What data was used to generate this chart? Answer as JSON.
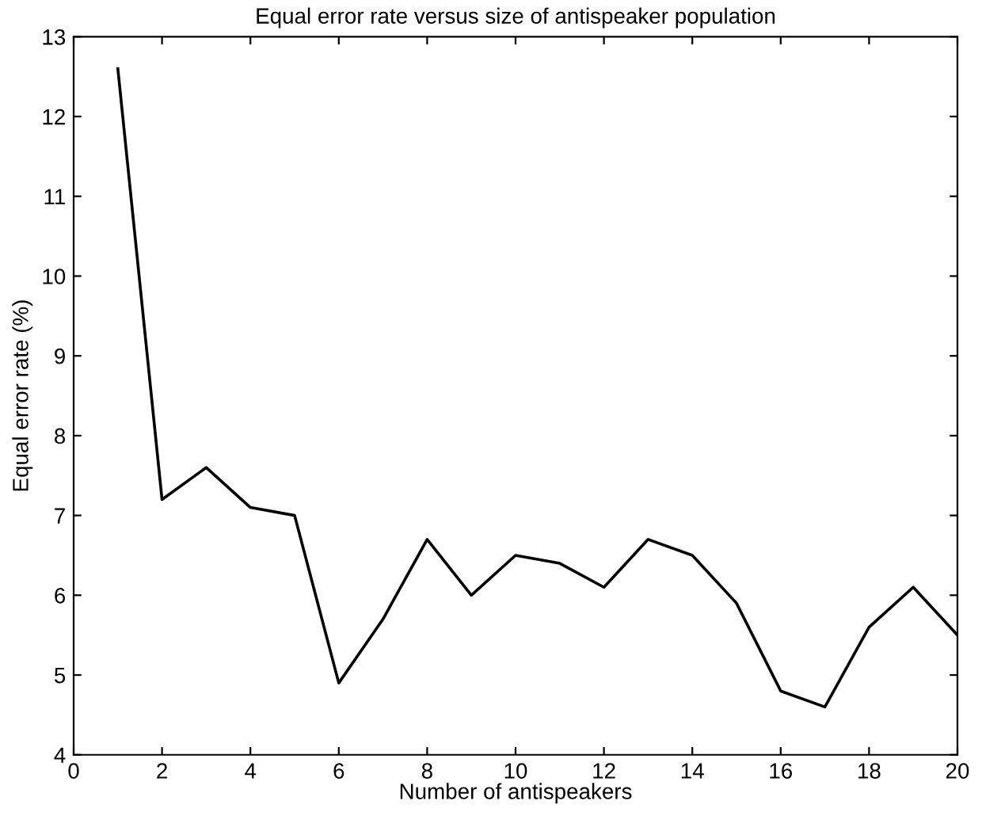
{
  "chart_data": {
    "type": "line",
    "title": "Equal error rate versus size of antispeaker population",
    "xlabel": "Number of antispeakers",
    "ylabel": "Equal error rate (%)",
    "x": [
      1,
      2,
      3,
      4,
      5,
      6,
      7,
      8,
      9,
      10,
      11,
      12,
      13,
      14,
      15,
      16,
      17,
      18,
      19,
      20
    ],
    "series": [
      {
        "color": "#000000",
        "values": [
          12.6,
          7.2,
          7.6,
          7.1,
          7.0,
          4.9,
          5.7,
          6.7,
          6.0,
          6.5,
          6.4,
          6.1,
          6.7,
          6.5,
          5.9,
          4.8,
          4.6,
          5.6,
          6.1,
          5.5
        ]
      }
    ],
    "xlim": [
      0,
      20
    ],
    "ylim": [
      4,
      13
    ],
    "xticks": [
      0,
      2,
      4,
      6,
      8,
      10,
      12,
      14,
      16,
      18,
      20
    ],
    "yticks": [
      4,
      5,
      6,
      7,
      8,
      9,
      10,
      11,
      12,
      13
    ],
    "grid": false,
    "legend": false,
    "marker": "none",
    "line_style": "solid"
  }
}
